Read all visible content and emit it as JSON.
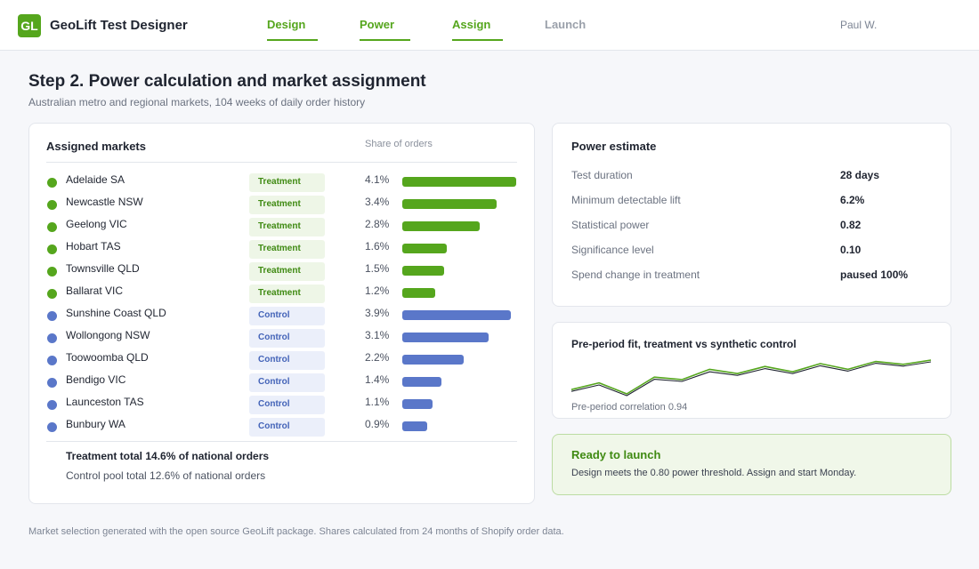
{
  "app": {
    "logo_text": "GL",
    "title": "GeoLift Test Designer",
    "user": "Paul W."
  },
  "nav": {
    "tabs": [
      {
        "label": "Design",
        "state": "done"
      },
      {
        "label": "Power",
        "state": "done"
      },
      {
        "label": "Assign",
        "state": "done"
      },
      {
        "label": "Launch",
        "state": "upcoming"
      }
    ]
  },
  "page": {
    "title": "Step 2. Power calculation and market assignment",
    "subtitle": "Australian metro and regional markets, 104 weeks of daily order history"
  },
  "markets": {
    "title": "Assigned markets",
    "share_header": "Share of orders",
    "rows": [
      {
        "name": "Adelaide SA",
        "group": "Treatment",
        "share_label": "4.1%",
        "share": 4.1
      },
      {
        "name": "Newcastle NSW",
        "group": "Treatment",
        "share_label": "3.4%",
        "share": 3.4
      },
      {
        "name": "Geelong VIC",
        "group": "Treatment",
        "share_label": "2.8%",
        "share": 2.8
      },
      {
        "name": "Hobart TAS",
        "group": "Treatment",
        "share_label": "1.6%",
        "share": 1.6
      },
      {
        "name": "Townsville QLD",
        "group": "Treatment",
        "share_label": "1.5%",
        "share": 1.5
      },
      {
        "name": "Ballarat VIC",
        "group": "Treatment",
        "share_label": "1.2%",
        "share": 1.2
      },
      {
        "name": "Sunshine Coast QLD",
        "group": "Control",
        "share_label": "3.9%",
        "share": 3.9
      },
      {
        "name": "Wollongong NSW",
        "group": "Control",
        "share_label": "3.1%",
        "share": 3.1
      },
      {
        "name": "Toowoomba QLD",
        "group": "Control",
        "share_label": "2.2%",
        "share": 2.2
      },
      {
        "name": "Bendigo VIC",
        "group": "Control",
        "share_label": "1.4%",
        "share": 1.4
      },
      {
        "name": "Launceston TAS",
        "group": "Control",
        "share_label": "1.1%",
        "share": 1.1
      },
      {
        "name": "Bunbury WA",
        "group": "Control",
        "share_label": "0.9%",
        "share": 0.9
      }
    ],
    "share_max": 4.1,
    "treatment_total": "Treatment total 14.6% of national orders",
    "control_total": "Control pool total 12.6% of national orders"
  },
  "power": {
    "title": "Power estimate",
    "rows": [
      {
        "label": "Test duration",
        "value": "28 days"
      },
      {
        "label": "Minimum detectable lift",
        "value": "6.2%"
      },
      {
        "label": "Statistical power",
        "value": "0.82"
      },
      {
        "label": "Significance level",
        "value": "0.10"
      },
      {
        "label": "Spend change in treatment",
        "value": "paused 100%"
      }
    ]
  },
  "fit": {
    "title": "Pre-period fit, treatment vs synthetic control",
    "caption": "Pre-period correlation 0.94"
  },
  "chart_data": {
    "type": "line",
    "title": "Pre-period fit, treatment vs synthetic control",
    "xlabel": "",
    "ylabel": "",
    "x": [
      1,
      2,
      3,
      4,
      5,
      6,
      7,
      8,
      9,
      10,
      11,
      12,
      13,
      14
    ],
    "ylim": [
      0,
      1
    ],
    "series": [
      {
        "color": "#55a61d",
        "values": [
          0.17,
          0.36,
          0.05,
          0.52,
          0.45,
          0.74,
          0.62,
          0.82,
          0.67,
          0.9,
          0.74,
          0.96,
          0.88,
          1.0
        ]
      },
      {
        "color": "#1f2430",
        "values": [
          0.12,
          0.3,
          0.0,
          0.46,
          0.4,
          0.67,
          0.57,
          0.76,
          0.62,
          0.84,
          0.69,
          0.91,
          0.83,
          0.95
        ]
      }
    ],
    "grid": false,
    "legend": "none"
  },
  "launch": {
    "title": "Ready to launch",
    "message": "Design meets the 0.80 power threshold. Assign and start Monday."
  },
  "footer": "Market selection generated with the open source GeoLift package. Shares calculated from 24 months of Shopify order data.",
  "colors": {
    "treatment": "#55a61d",
    "control": "#5a77c9",
    "accent": "#55a61d"
  }
}
